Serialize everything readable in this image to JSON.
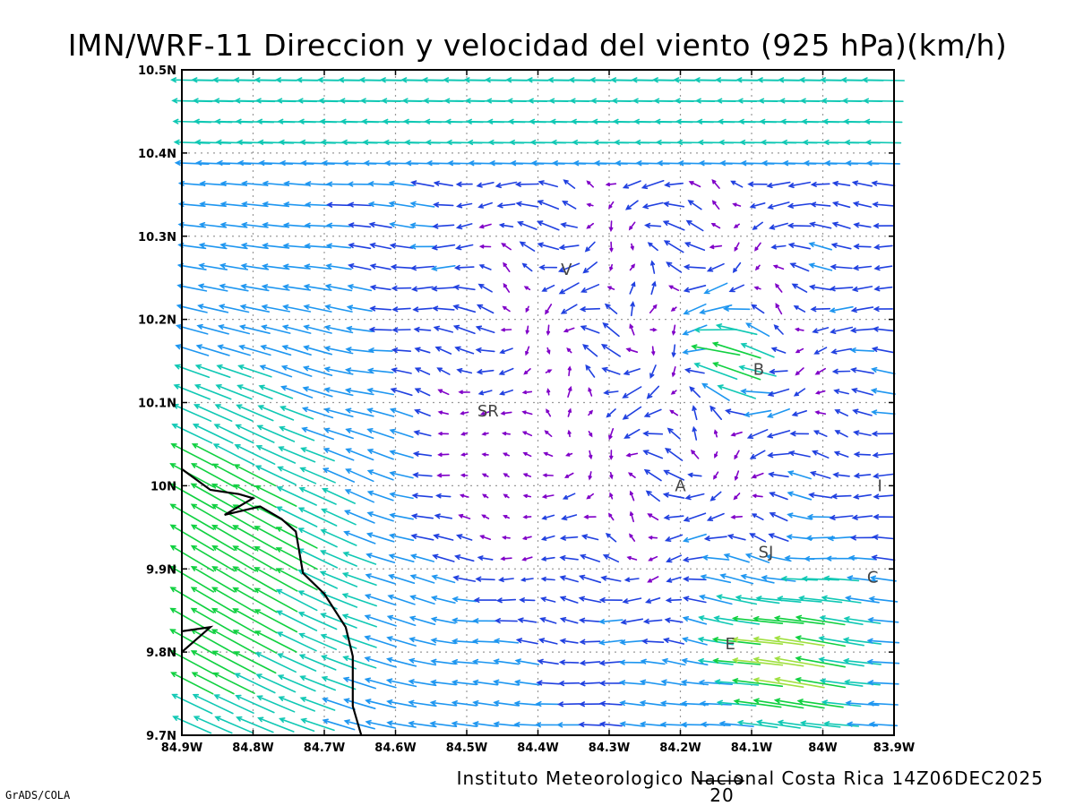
{
  "title": "IMN/WRF-11 Direccion y velocidad del viento (925 hPa)(km/h)",
  "footer": "Instituto Meteorologico Nacional Costa Rica 14Z06DEC2025",
  "credit": "GrADS/COLA",
  "reference_vector": {
    "label": "20",
    "speed": 20
  },
  "map": {
    "lon_range": [
      -84.9,
      -83.9
    ],
    "lat_range": [
      9.7,
      10.5
    ],
    "x_ticks": [
      "84.9W",
      "84.8W",
      "84.7W",
      "84.6W",
      "84.5W",
      "84.4W",
      "84.3W",
      "84.2W",
      "84.1W",
      "84W",
      "83.9W"
    ],
    "y_ticks": [
      "10.5N",
      "10.4N",
      "10.3N",
      "10.2N",
      "10.1N",
      "10N",
      "9.9N",
      "9.8N",
      "9.7N"
    ],
    "grid": true,
    "stations": [
      {
        "label": "V",
        "lon": -84.36,
        "lat": 10.26
      },
      {
        "label": "B",
        "lon": -84.09,
        "lat": 10.14
      },
      {
        "label": "SR",
        "lon": -84.47,
        "lat": 10.09
      },
      {
        "label": "A",
        "lon": -84.2,
        "lat": 10.0
      },
      {
        "label": "I",
        "lon": -83.92,
        "lat": 10.0
      },
      {
        "label": "SJ",
        "lon": -84.08,
        "lat": 9.92
      },
      {
        "label": "C",
        "lon": -83.93,
        "lat": 9.89
      },
      {
        "label": "E",
        "lon": -84.13,
        "lat": 9.81
      }
    ],
    "speed_colors": [
      {
        "max": 5,
        "color": "#8000c8"
      },
      {
        "max": 10,
        "color": "#2040e0"
      },
      {
        "max": 15,
        "color": "#1e96f0"
      },
      {
        "max": 20,
        "color": "#10c8b4"
      },
      {
        "max": 25,
        "color": "#10d040"
      },
      {
        "max": 30,
        "color": "#a0e040"
      },
      {
        "max": 35,
        "color": "#e6dc32"
      },
      {
        "max": 40,
        "color": "#f0a028"
      },
      {
        "max": 999,
        "color": "#f03c3c"
      }
    ],
    "coastline_lonlat": [
      [
        -84.9,
        10.02
      ],
      [
        -84.86,
        9.995
      ],
      [
        -84.82,
        9.99
      ],
      [
        -84.8,
        9.985
      ],
      [
        -84.84,
        9.965
      ],
      [
        -84.79,
        9.975
      ],
      [
        -84.76,
        9.96
      ],
      [
        -84.74,
        9.945
      ],
      [
        -84.73,
        9.895
      ],
      [
        -84.7,
        9.87
      ],
      [
        -84.67,
        9.83
      ],
      [
        -84.66,
        9.795
      ],
      [
        -84.66,
        9.735
      ],
      [
        -84.648,
        9.7
      ]
    ],
    "island_lonlat": [
      [
        -84.9,
        9.8
      ],
      [
        -84.86,
        9.83
      ],
      [
        -84.9,
        9.825
      ]
    ]
  }
}
